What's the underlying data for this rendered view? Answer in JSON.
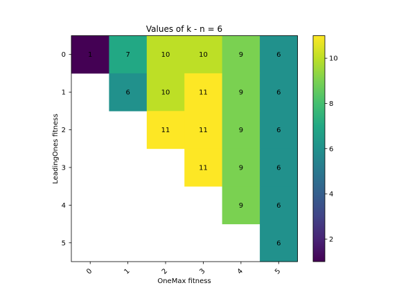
{
  "chart_data": {
    "type": "heatmap",
    "title": "Values of k - n = 6",
    "xlabel": "OneMax fitness",
    "ylabel": "LeadingOnes fitness",
    "x_categories": [
      "0",
      "1",
      "2",
      "3",
      "4",
      "5"
    ],
    "y_categories": [
      "0",
      "1",
      "2",
      "3",
      "4",
      "5"
    ],
    "colormap": "viridis",
    "vmin": 1,
    "vmax": 11,
    "colorbar_ticks": [
      2,
      4,
      6,
      8,
      10
    ],
    "colorbar_tick_labels": [
      "2",
      "4",
      "6",
      "8",
      "10"
    ],
    "cells": [
      {
        "x": 0,
        "y": 0,
        "value": 1
      },
      {
        "x": 1,
        "y": 0,
        "value": 7
      },
      {
        "x": 2,
        "y": 0,
        "value": 10
      },
      {
        "x": 3,
        "y": 0,
        "value": 10
      },
      {
        "x": 4,
        "y": 0,
        "value": 9
      },
      {
        "x": 5,
        "y": 0,
        "value": 6
      },
      {
        "x": 1,
        "y": 1,
        "value": 6
      },
      {
        "x": 2,
        "y": 1,
        "value": 10
      },
      {
        "x": 3,
        "y": 1,
        "value": 11
      },
      {
        "x": 4,
        "y": 1,
        "value": 9
      },
      {
        "x": 5,
        "y": 1,
        "value": 6
      },
      {
        "x": 2,
        "y": 2,
        "value": 11
      },
      {
        "x": 3,
        "y": 2,
        "value": 11
      },
      {
        "x": 4,
        "y": 2,
        "value": 9
      },
      {
        "x": 5,
        "y": 2,
        "value": 6
      },
      {
        "x": 3,
        "y": 3,
        "value": 11
      },
      {
        "x": 4,
        "y": 3,
        "value": 9
      },
      {
        "x": 5,
        "y": 3,
        "value": 6
      },
      {
        "x": 4,
        "y": 4,
        "value": 9
      },
      {
        "x": 5,
        "y": 4,
        "value": 6
      },
      {
        "x": 5,
        "y": 5,
        "value": 6
      }
    ]
  }
}
